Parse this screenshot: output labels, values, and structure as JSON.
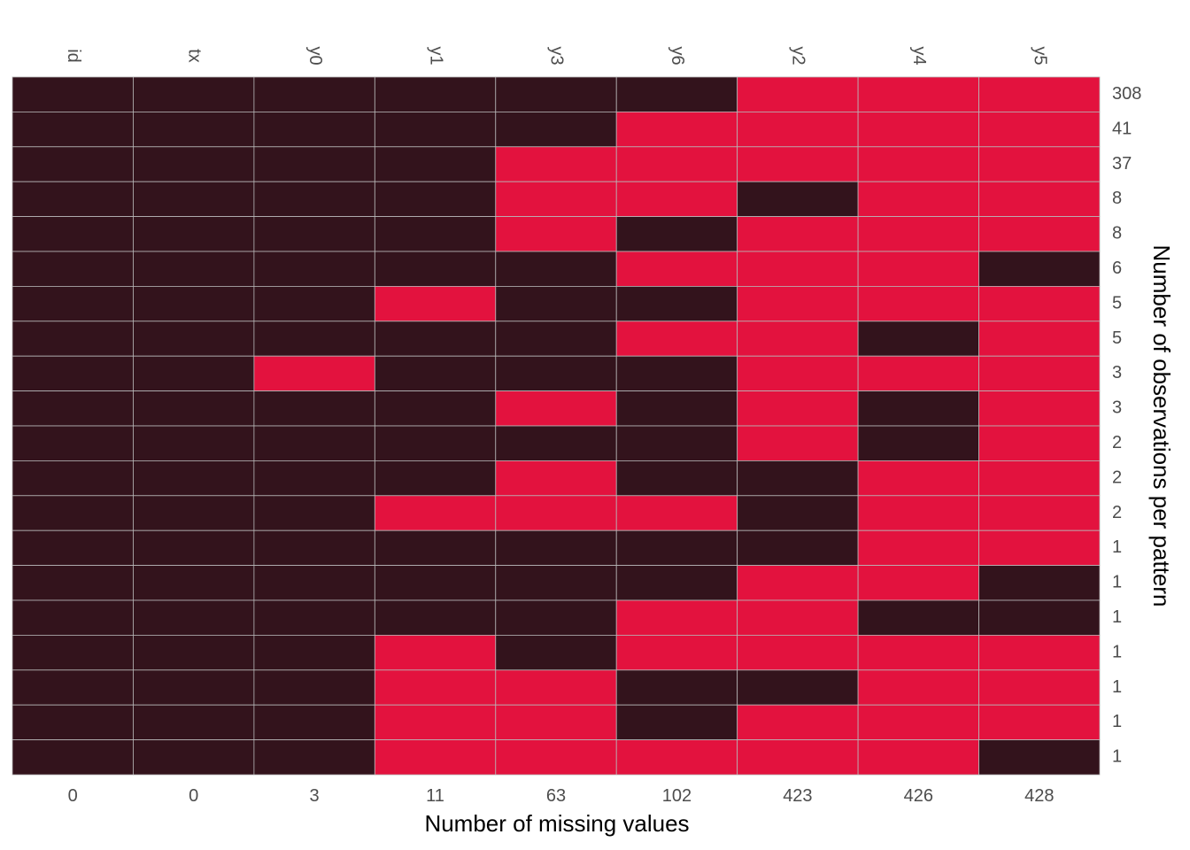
{
  "chart_data": {
    "type": "heatmap",
    "title": "",
    "xlabel": "Number of missing values",
    "ylabel": "Number of observations per pattern",
    "variables": [
      "id",
      "tx",
      "y0",
      "y1",
      "y3",
      "y6",
      "y2",
      "y4",
      "y5"
    ],
    "missing_counts": [
      "0",
      "0",
      "3",
      "11",
      "63",
      "102",
      "423",
      "426",
      "428"
    ],
    "pattern_counts": [
      "308",
      "41",
      "37",
      "8",
      "8",
      "6",
      "5",
      "5",
      "3",
      "3",
      "2",
      "2",
      "2",
      "1",
      "1",
      "1",
      "1",
      "1",
      "1",
      "1"
    ],
    "patterns": [
      [
        0,
        0,
        0,
        0,
        0,
        0,
        1,
        1,
        1
      ],
      [
        0,
        0,
        0,
        0,
        0,
        1,
        1,
        1,
        1
      ],
      [
        0,
        0,
        0,
        0,
        1,
        1,
        1,
        1,
        1
      ],
      [
        0,
        0,
        0,
        0,
        1,
        1,
        0,
        1,
        1
      ],
      [
        0,
        0,
        0,
        0,
        1,
        0,
        1,
        1,
        1
      ],
      [
        0,
        0,
        0,
        0,
        0,
        1,
        1,
        1,
        0
      ],
      [
        0,
        0,
        0,
        1,
        0,
        0,
        1,
        1,
        1
      ],
      [
        0,
        0,
        0,
        0,
        0,
        1,
        1,
        0,
        1
      ],
      [
        0,
        0,
        1,
        0,
        0,
        0,
        1,
        1,
        1
      ],
      [
        0,
        0,
        0,
        0,
        1,
        0,
        1,
        0,
        1
      ],
      [
        0,
        0,
        0,
        0,
        0,
        0,
        1,
        0,
        1
      ],
      [
        0,
        0,
        0,
        0,
        1,
        0,
        0,
        1,
        1
      ],
      [
        0,
        0,
        0,
        1,
        1,
        1,
        0,
        1,
        1
      ],
      [
        0,
        0,
        0,
        0,
        0,
        0,
        0,
        1,
        1
      ],
      [
        0,
        0,
        0,
        0,
        0,
        0,
        1,
        1,
        0
      ],
      [
        0,
        0,
        0,
        0,
        0,
        1,
        1,
        0,
        0
      ],
      [
        0,
        0,
        0,
        1,
        0,
        1,
        1,
        1,
        1
      ],
      [
        0,
        0,
        0,
        1,
        1,
        0,
        0,
        1,
        1
      ],
      [
        0,
        0,
        0,
        1,
        1,
        0,
        1,
        1,
        1
      ],
      [
        0,
        0,
        0,
        1,
        1,
        1,
        1,
        1,
        0
      ]
    ],
    "colors": {
      "observed": "#33131c",
      "missing": "#e3123e",
      "grid": "#b8b8b8"
    },
    "legend": "none"
  }
}
